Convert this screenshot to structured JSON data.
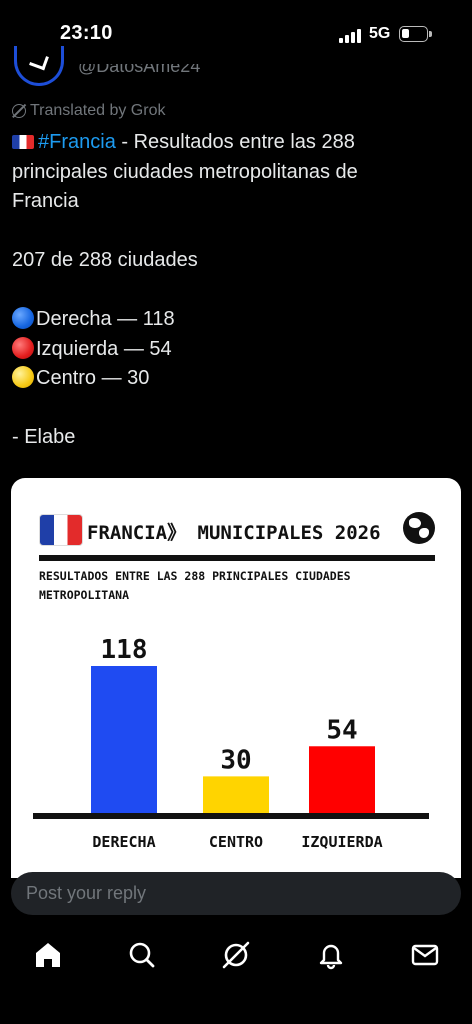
{
  "status_bar": {
    "time": "23:10",
    "network": "5G"
  },
  "author": {
    "handle": "@DatosAme24"
  },
  "translated_label": "Translated by Grok",
  "post": {
    "hashtag": "#Francia",
    "line1_rest": " - Resultados entre las 288",
    "line2": "principales ciudades metropolitanas de",
    "line3": "Francia",
    "count_line": "207 de 288 ciudades",
    "results": [
      {
        "label": "Derecha — 118",
        "color": "blue"
      },
      {
        "label": "Izquierda — 54",
        "color": "red"
      },
      {
        "label": "Centro — 30",
        "color": "yellow"
      }
    ],
    "source": "- Elabe"
  },
  "card": {
    "header_title": "FRANCIA》 MUNICIPALES 2026",
    "subtitle_line1": "RESULTADOS ENTRE LAS 288 PRINCIPALES CIUDADES",
    "subtitle_line2": "METROPOLITANA"
  },
  "chart_data": {
    "type": "bar",
    "categories": [
      "DERECHA",
      "CENTRO",
      "IZQUIERDA"
    ],
    "values": [
      118,
      30,
      54
    ],
    "colors": [
      "#1f4bf2",
      "#ffd400",
      "#ff0000"
    ],
    "title": "FRANCIA》 MUNICIPALES 2026",
    "subtitle": "RESULTADOS ENTRE LAS 288 PRINCIPALES CIUDADES METROPOLITANA",
    "xlabel": "",
    "ylabel": "",
    "grid": false
  },
  "reply": {
    "placeholder": "Post your reply"
  },
  "nav": [
    {
      "icon": "home-icon"
    },
    {
      "icon": "search-icon"
    },
    {
      "icon": "grok-icon"
    },
    {
      "icon": "bell-icon"
    },
    {
      "icon": "mail-icon"
    }
  ]
}
